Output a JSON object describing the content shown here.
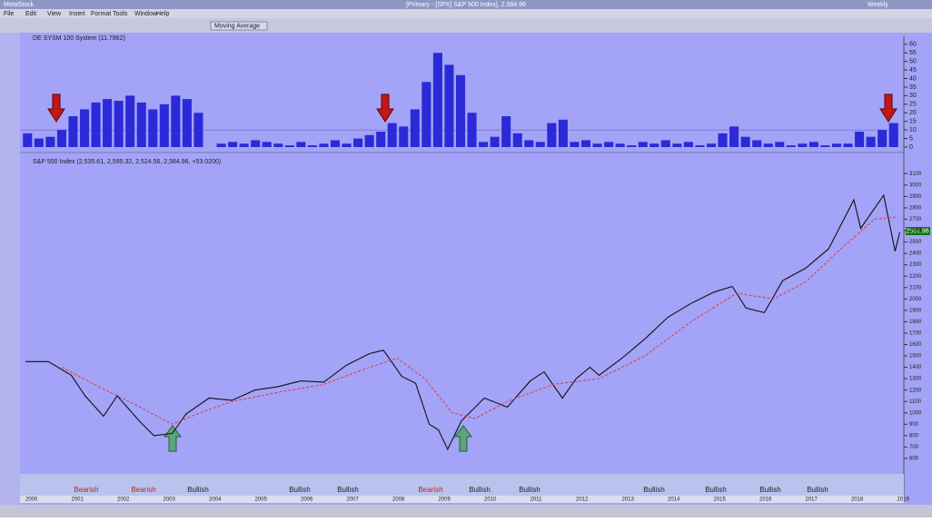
{
  "window": {
    "app": "MetaStock",
    "title": "[Primary - [SPX] S&P 500 Index], 2,584.96",
    "periodicity": "Weekly"
  },
  "menu": [
    "File",
    "Edit",
    "View",
    "Insert",
    "Format",
    "Tools",
    "Window",
    "Help"
  ],
  "toolbar": {
    "indicator_button": "Moving Average"
  },
  "indicator_panel": {
    "type": "bar",
    "title": "DE SYSM 100 System (11.7862)",
    "color": "#2a2ad8",
    "values": [
      8,
      5,
      6,
      10,
      18,
      22,
      26,
      28,
      27,
      30,
      26,
      22,
      25,
      30,
      28,
      20,
      0,
      2,
      3,
      2,
      4,
      3,
      2,
      1,
      3,
      1,
      2,
      4,
      2,
      5,
      7,
      9,
      14,
      12,
      22,
      38,
      55,
      48,
      42,
      20,
      3,
      6,
      18,
      8,
      4,
      3,
      14,
      16,
      3,
      4,
      2,
      3,
      2,
      1,
      3,
      2,
      4,
      2,
      3,
      1,
      2,
      8,
      12,
      6,
      4,
      2,
      3,
      1,
      2,
      3,
      1,
      2,
      2,
      9,
      6,
      10,
      14
    ],
    "ylim": [
      0,
      62
    ],
    "yticks": [
      0,
      5,
      10,
      15,
      20,
      25,
      30,
      35,
      40,
      45,
      50,
      55,
      60
    ],
    "threshold": 10
  },
  "price_panel": {
    "type": "line",
    "title": "S&P 500 Index (2,535.61, 2,595.32, 2,524.56, 2,584.96, +53.0200)",
    "last_price": "2584.96",
    "xlim": [
      2000,
      2019.1
    ],
    "ylim": [
      520,
      3150
    ],
    "yticks": [
      600,
      700,
      800,
      900,
      1000,
      1100,
      1200,
      1300,
      1400,
      1500,
      1600,
      1700,
      1800,
      1900,
      2000,
      2100,
      2200,
      2300,
      2400,
      2500,
      2600,
      2700,
      2800,
      2900,
      3000,
      3100
    ],
    "series": [
      {
        "name": "S&P 500 Index",
        "color": "#111111",
        "x": [
          2000.0,
          2000.5,
          2001.0,
          2001.3,
          2001.7,
          2002.0,
          2002.5,
          2002.8,
          2003.2,
          2003.5,
          2004.0,
          2004.5,
          2005.0,
          2005.5,
          2006.0,
          2006.5,
          2007.0,
          2007.5,
          2007.8,
          2008.2,
          2008.5,
          2008.8,
          2009.0,
          2009.2,
          2009.5,
          2010.0,
          2010.5,
          2011.0,
          2011.3,
          2011.7,
          2012.0,
          2012.3,
          2012.5,
          2013.0,
          2013.5,
          2014.0,
          2014.5,
          2015.0,
          2015.4,
          2015.7,
          2016.1,
          2016.5,
          2017.0,
          2017.5,
          2018.05,
          2018.2,
          2018.7,
          2018.95,
          2019.05
        ],
        "values": [
          1450,
          1450,
          1330,
          1150,
          970,
          1150,
          920,
          800,
          820,
          990,
          1130,
          1110,
          1200,
          1230,
          1280,
          1270,
          1420,
          1520,
          1550,
          1320,
          1260,
          900,
          850,
          680,
          930,
          1130,
          1050,
          1280,
          1360,
          1130,
          1300,
          1400,
          1330,
          1480,
          1650,
          1840,
          1960,
          2060,
          2110,
          1920,
          1880,
          2160,
          2270,
          2440,
          2870,
          2620,
          2910,
          2420,
          2585
        ]
      },
      {
        "name": "Moving Average",
        "color": "#e03a3a",
        "x": [
          2000.8,
          2001.5,
          2002.5,
          2003.2,
          2003.8,
          2004.5,
          2005.5,
          2006.5,
          2007.5,
          2008.1,
          2008.7,
          2009.3,
          2009.8,
          2010.5,
          2011.5,
          2012.5,
          2013.5,
          2014.5,
          2015.5,
          2016.3,
          2017.0,
          2017.8,
          2018.5,
          2019.0
        ],
        "values": [
          1400,
          1250,
          1050,
          900,
          1000,
          1100,
          1180,
          1250,
          1400,
          1480,
          1300,
          1000,
          950,
          1100,
          1250,
          1300,
          1500,
          1800,
          2050,
          2000,
          2150,
          2450,
          2700,
          2720
        ]
      }
    ]
  },
  "regimes": [
    "Bearish",
    "Bearish",
    "Bullish",
    "Bullish",
    "Bullish",
    "Bearish",
    "Bullish",
    "Bullish",
    "Bullish",
    "Bullish",
    "Bullish",
    "Bullish"
  ],
  "years": [
    "2000",
    "2001",
    "2002",
    "2003",
    "2004",
    "2005",
    "2006",
    "2007",
    "2008",
    "2009",
    "2010",
    "2011",
    "2012",
    "2013",
    "2014",
    "2015",
    "2016",
    "2017",
    "2018",
    "2019"
  ]
}
